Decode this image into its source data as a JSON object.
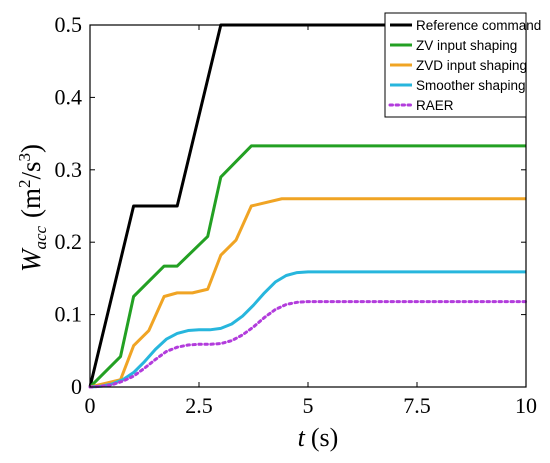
{
  "chart_data": {
    "type": "line",
    "xlabel": {
      "var": "t",
      "unit": "(s)"
    },
    "ylabel": {
      "var": "W",
      "sub": "acc",
      "unit_open": "(m",
      "unit_mid": "/s",
      "unit_close": ")",
      "sup": "2",
      "sup2": "3"
    },
    "xlim": [
      0,
      10
    ],
    "ylim": [
      0,
      0.5
    ],
    "xticks": [
      0,
      2.5,
      5,
      7.5,
      10
    ],
    "xtick_labels": [
      "0",
      "2.5",
      "5",
      "7.5",
      "10"
    ],
    "yticks": [
      0,
      0.1,
      0.2,
      0.3,
      0.4,
      0.5
    ],
    "ytick_labels": [
      "0",
      "0.1",
      "0.2",
      "0.3",
      "0.4",
      "0.5"
    ],
    "grid": false,
    "legend_position": "top-right",
    "series": [
      {
        "name": "Reference command",
        "color": "#000000",
        "dash": "solid",
        "x": [
          0,
          1,
          2,
          3,
          10
        ],
        "y": [
          0,
          0.25,
          0.25,
          0.5,
          0.5
        ]
      },
      {
        "name": "ZV input shaping",
        "color": "#23a023",
        "dash": "solid",
        "x": [
          0,
          0.7,
          1.0,
          1.7,
          2.0,
          2.7,
          3.0,
          3.7,
          10
        ],
        "y": [
          0,
          0.042,
          0.125,
          0.167,
          0.167,
          0.208,
          0.29,
          0.333,
          0.333
        ]
      },
      {
        "name": "ZVD input shaping",
        "color": "#f0a424",
        "dash": "solid",
        "x": [
          0,
          0.7,
          1.0,
          1.35,
          1.7,
          2.0,
          2.35,
          2.7,
          3.0,
          3.35,
          3.7,
          4.4,
          10
        ],
        "y": [
          0,
          0.01,
          0.057,
          0.078,
          0.125,
          0.13,
          0.13,
          0.135,
          0.182,
          0.203,
          0.25,
          0.26,
          0.26
        ]
      },
      {
        "name": "Smoother shaping",
        "color": "#27b6dd",
        "dash": "solid",
        "x": [
          0,
          0.25,
          0.5,
          0.75,
          1.0,
          1.25,
          1.5,
          1.75,
          2.0,
          2.25,
          2.5,
          2.75,
          3.0,
          3.25,
          3.5,
          3.75,
          4.0,
          4.25,
          4.5,
          4.75,
          5.0,
          5.5,
          10
        ],
        "y": [
          0,
          0.001,
          0.004,
          0.01,
          0.02,
          0.035,
          0.052,
          0.066,
          0.074,
          0.078,
          0.079,
          0.079,
          0.081,
          0.087,
          0.098,
          0.113,
          0.13,
          0.145,
          0.154,
          0.158,
          0.159,
          0.159,
          0.159
        ]
      },
      {
        "name": "RAER",
        "color": "#b23cdc",
        "dash": "dotted",
        "x": [
          0,
          0.25,
          0.5,
          0.75,
          1.0,
          1.25,
          1.5,
          1.75,
          2.0,
          2.25,
          2.5,
          2.75,
          3.0,
          3.25,
          3.5,
          3.75,
          4.0,
          4.25,
          4.5,
          4.75,
          5.0,
          5.5,
          10
        ],
        "y": [
          0,
          0.001,
          0.003,
          0.008,
          0.015,
          0.026,
          0.038,
          0.049,
          0.055,
          0.058,
          0.059,
          0.059,
          0.06,
          0.064,
          0.072,
          0.083,
          0.096,
          0.107,
          0.114,
          0.117,
          0.118,
          0.118,
          0.118
        ]
      }
    ]
  }
}
